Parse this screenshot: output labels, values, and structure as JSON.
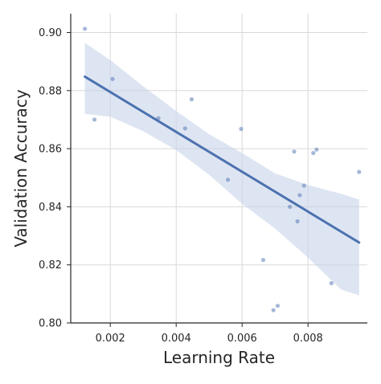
{
  "chart_data": {
    "type": "scatter",
    "title": "",
    "xlabel": "Learning Rate",
    "ylabel": "Validation Accuracy",
    "xlim": [
      0.0008,
      0.0098
    ],
    "ylim": [
      0.8,
      0.9065
    ],
    "x_ticks": [
      0.002,
      0.004,
      0.006,
      0.008
    ],
    "x_tick_labels": [
      "0.002",
      "0.004",
      "0.006",
      "0.008"
    ],
    "y_ticks": [
      0.8,
      0.82,
      0.84,
      0.86,
      0.88,
      0.9
    ],
    "y_tick_labels": [
      "0.80",
      "0.82",
      "0.84",
      "0.86",
      "0.88",
      "0.90"
    ],
    "grid": true,
    "legend": "none",
    "colors": {
      "points": "#4c72b0",
      "line": "#4c72b0",
      "band": "#c8d3ea",
      "grid": "#d9d9d9",
      "axis": "#262626"
    },
    "series": [
      {
        "values": [
          {
            "x": 0.00123,
            "y": 0.9013
          },
          {
            "x": 0.00152,
            "y": 0.87
          },
          {
            "x": 0.00207,
            "y": 0.884
          },
          {
            "x": 0.00346,
            "y": 0.8705
          },
          {
            "x": 0.00427,
            "y": 0.867
          },
          {
            "x": 0.00447,
            "y": 0.877
          },
          {
            "x": 0.00557,
            "y": 0.8493
          },
          {
            "x": 0.00597,
            "y": 0.8668
          },
          {
            "x": 0.00664,
            "y": 0.8217
          },
          {
            "x": 0.00695,
            "y": 0.8044
          },
          {
            "x": 0.00708,
            "y": 0.8059
          },
          {
            "x": 0.00745,
            "y": 0.84
          },
          {
            "x": 0.00758,
            "y": 0.859
          },
          {
            "x": 0.00768,
            "y": 0.835
          },
          {
            "x": 0.00775,
            "y": 0.844
          },
          {
            "x": 0.00788,
            "y": 0.8473
          },
          {
            "x": 0.00816,
            "y": 0.8585
          },
          {
            "x": 0.00826,
            "y": 0.8597
          },
          {
            "x": 0.00871,
            "y": 0.8137
          },
          {
            "x": 0.00955,
            "y": 0.852
          }
        ]
      }
    ],
    "regression": {
      "x": [
        0.00123,
        0.00955
      ],
      "y": [
        0.8848,
        0.8277
      ]
    },
    "confidence_band": {
      "x": [
        0.00123,
        0.002,
        0.003,
        0.004,
        0.005,
        0.006,
        0.007,
        0.008,
        0.009,
        0.00955
      ],
      "upper": [
        0.8965,
        0.8905,
        0.8815,
        0.873,
        0.865,
        0.8585,
        0.8515,
        0.8475,
        0.8445,
        0.8425
      ],
      "lower": [
        0.872,
        0.871,
        0.866,
        0.8595,
        0.851,
        0.841,
        0.8325,
        0.8225,
        0.8115,
        0.8095
      ]
    }
  }
}
